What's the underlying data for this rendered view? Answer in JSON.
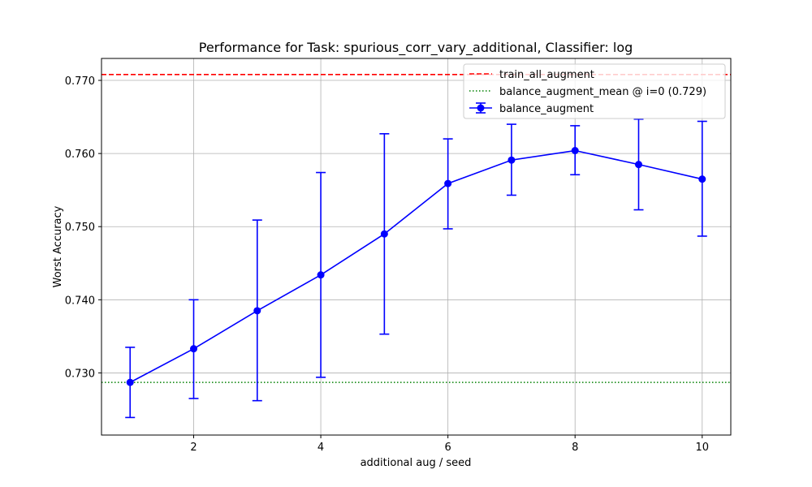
{
  "chart_data": {
    "type": "line",
    "title": "Performance for Task: spurious_corr_vary_additional, Classifier: log",
    "xlabel": "additional aug / seed",
    "ylabel": "Worst Accuracy",
    "xlim": [
      0.55,
      10.45
    ],
    "ylim": [
      0.7215,
      0.773
    ],
    "xticks": [
      2,
      4,
      6,
      8,
      10
    ],
    "yticks": [
      0.73,
      0.74,
      0.75,
      0.76,
      0.77
    ],
    "xtick_labels": [
      "2",
      "4",
      "6",
      "8",
      "10"
    ],
    "ytick_labels": [
      "0.730",
      "0.740",
      "0.750",
      "0.760",
      "0.770"
    ],
    "grid": true,
    "legend_position": "top-right",
    "reference_lines": [
      {
        "name": "train_all_augment",
        "y": 0.7708,
        "color": "#ff0000",
        "style": "dashed"
      },
      {
        "name": "balance_augment_mean @ i=0 (0.729)",
        "y": 0.7287,
        "color": "#008000",
        "style": "dotted"
      }
    ],
    "series": [
      {
        "name": "balance_augment",
        "color": "#0000ff",
        "x": [
          1,
          2,
          3,
          4,
          5,
          6,
          7,
          8,
          9,
          10
        ],
        "y": [
          0.7287,
          0.7333,
          0.7385,
          0.7434,
          0.749,
          0.7559,
          0.7591,
          0.7604,
          0.7585,
          0.7565
        ],
        "err_low": [
          0.7239,
          0.7265,
          0.7262,
          0.7294,
          0.7353,
          0.7497,
          0.7543,
          0.7571,
          0.7523,
          0.7487
        ],
        "err_high": [
          0.7335,
          0.74,
          0.7509,
          0.7574,
          0.7627,
          0.762,
          0.764,
          0.7638,
          0.7647,
          0.7644
        ]
      }
    ]
  }
}
